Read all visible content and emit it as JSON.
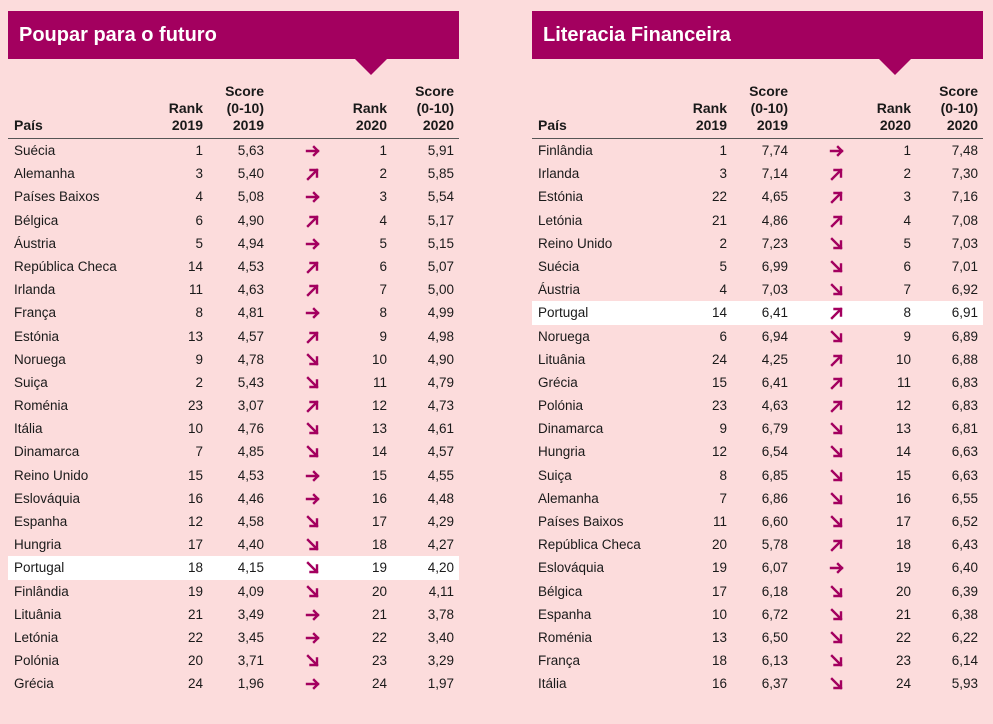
{
  "colors": {
    "accent": "#a3005f",
    "background": "#fcdcdc",
    "highlight": "#ffffff"
  },
  "columns": {
    "country": "País",
    "rank2019": [
      "Rank",
      "2019"
    ],
    "score2019": [
      "Score",
      "(0-10)",
      "2019"
    ],
    "rank2020": [
      "Rank",
      "2020"
    ],
    "score2020": [
      "Score",
      "(0-10)",
      "2020"
    ]
  },
  "tables": [
    {
      "title": "Poupar para o futuro",
      "rows": [
        {
          "c": "Suécia",
          "r19": "1",
          "s19": "5,63",
          "t": "right",
          "r20": "1",
          "s20": "5,91"
        },
        {
          "c": "Alemanha",
          "r19": "3",
          "s19": "5,40",
          "t": "up",
          "r20": "2",
          "s20": "5,85"
        },
        {
          "c": "Países Baixos",
          "r19": "4",
          "s19": "5,08",
          "t": "right",
          "r20": "3",
          "s20": "5,54"
        },
        {
          "c": "Bélgica",
          "r19": "6",
          "s19": "4,90",
          "t": "up",
          "r20": "4",
          "s20": "5,17"
        },
        {
          "c": "Áustria",
          "r19": "5",
          "s19": "4,94",
          "t": "right",
          "r20": "5",
          "s20": "5,15"
        },
        {
          "c": "República Checa",
          "r19": "14",
          "s19": "4,53",
          "t": "up",
          "r20": "6",
          "s20": "5,07"
        },
        {
          "c": "Irlanda",
          "r19": "11",
          "s19": "4,63",
          "t": "up",
          "r20": "7",
          "s20": "5,00"
        },
        {
          "c": "França",
          "r19": "8",
          "s19": "4,81",
          "t": "right",
          "r20": "8",
          "s20": "4,99"
        },
        {
          "c": "Estónia",
          "r19": "13",
          "s19": "4,57",
          "t": "up",
          "r20": "9",
          "s20": "4,98"
        },
        {
          "c": "Noruega",
          "r19": "9",
          "s19": "4,78",
          "t": "down",
          "r20": "10",
          "s20": "4,90"
        },
        {
          "c": "Suiça",
          "r19": "2",
          "s19": "5,43",
          "t": "down",
          "r20": "11",
          "s20": "4,79"
        },
        {
          "c": "Roménia",
          "r19": "23",
          "s19": "3,07",
          "t": "up",
          "r20": "12",
          "s20": "4,73"
        },
        {
          "c": "Itália",
          "r19": "10",
          "s19": "4,76",
          "t": "down",
          "r20": "13",
          "s20": "4,61"
        },
        {
          "c": "Dinamarca",
          "r19": "7",
          "s19": "4,85",
          "t": "down",
          "r20": "14",
          "s20": "4,57"
        },
        {
          "c": "Reino Unido",
          "r19": "15",
          "s19": "4,53",
          "t": "right",
          "r20": "15",
          "s20": "4,55"
        },
        {
          "c": "Eslováquia",
          "r19": "16",
          "s19": "4,46",
          "t": "right",
          "r20": "16",
          "s20": "4,48"
        },
        {
          "c": "Espanha",
          "r19": "12",
          "s19": "4,58",
          "t": "down",
          "r20": "17",
          "s20": "4,29"
        },
        {
          "c": "Hungria",
          "r19": "17",
          "s19": "4,40",
          "t": "down",
          "r20": "18",
          "s20": "4,27"
        },
        {
          "c": "Portugal",
          "r19": "18",
          "s19": "4,15",
          "t": "down",
          "r20": "19",
          "s20": "4,20",
          "hl": true
        },
        {
          "c": "Finlândia",
          "r19": "19",
          "s19": "4,09",
          "t": "down",
          "r20": "20",
          "s20": "4,11"
        },
        {
          "c": "Lituânia",
          "r19": "21",
          "s19": "3,49",
          "t": "right",
          "r20": "21",
          "s20": "3,78"
        },
        {
          "c": "Letónia",
          "r19": "22",
          "s19": "3,45",
          "t": "right",
          "r20": "22",
          "s20": "3,40"
        },
        {
          "c": "Polónia",
          "r19": "20",
          "s19": "3,71",
          "t": "down",
          "r20": "23",
          "s20": "3,29"
        },
        {
          "c": "Grécia",
          "r19": "24",
          "s19": "1,96",
          "t": "right",
          "r20": "24",
          "s20": "1,97"
        }
      ]
    },
    {
      "title": "Literacia Financeira",
      "rows": [
        {
          "c": "Finlândia",
          "r19": "1",
          "s19": "7,74",
          "t": "right",
          "r20": "1",
          "s20": "7,48"
        },
        {
          "c": "Irlanda",
          "r19": "3",
          "s19": "7,14",
          "t": "up",
          "r20": "2",
          "s20": "7,30"
        },
        {
          "c": "Estónia",
          "r19": "22",
          "s19": "4,65",
          "t": "up",
          "r20": "3",
          "s20": "7,16"
        },
        {
          "c": "Letónia",
          "r19": "21",
          "s19": "4,86",
          "t": "up",
          "r20": "4",
          "s20": "7,08"
        },
        {
          "c": "Reino Unido",
          "r19": "2",
          "s19": "7,23",
          "t": "down",
          "r20": "5",
          "s20": "7,03"
        },
        {
          "c": "Suécia",
          "r19": "5",
          "s19": "6,99",
          "t": "down",
          "r20": "6",
          "s20": "7,01"
        },
        {
          "c": "Áustria",
          "r19": "4",
          "s19": "7,03",
          "t": "down",
          "r20": "7",
          "s20": "6,92"
        },
        {
          "c": "Portugal",
          "r19": "14",
          "s19": "6,41",
          "t": "up",
          "r20": "8",
          "s20": "6,91",
          "hl": true
        },
        {
          "c": "Noruega",
          "r19": "6",
          "s19": "6,94",
          "t": "down",
          "r20": "9",
          "s20": "6,89"
        },
        {
          "c": "Lituânia",
          "r19": "24",
          "s19": "4,25",
          "t": "up",
          "r20": "10",
          "s20": "6,88"
        },
        {
          "c": "Grécia",
          "r19": "15",
          "s19": "6,41",
          "t": "up",
          "r20": "11",
          "s20": "6,83"
        },
        {
          "c": "Polónia",
          "r19": "23",
          "s19": "4,63",
          "t": "up",
          "r20": "12",
          "s20": "6,83"
        },
        {
          "c": "Dinamarca",
          "r19": "9",
          "s19": "6,79",
          "t": "down",
          "r20": "13",
          "s20": "6,81"
        },
        {
          "c": "Hungria",
          "r19": "12",
          "s19": "6,54",
          "t": "down",
          "r20": "14",
          "s20": "6,63"
        },
        {
          "c": "Suiça",
          "r19": "8",
          "s19": "6,85",
          "t": "down",
          "r20": "15",
          "s20": "6,63"
        },
        {
          "c": "Alemanha",
          "r19": "7",
          "s19": "6,86",
          "t": "down",
          "r20": "16",
          "s20": "6,55"
        },
        {
          "c": "Países Baixos",
          "r19": "11",
          "s19": "6,60",
          "t": "down",
          "r20": "17",
          "s20": "6,52"
        },
        {
          "c": "República Checa",
          "r19": "20",
          "s19": "5,78",
          "t": "up",
          "r20": "18",
          "s20": "6,43"
        },
        {
          "c": "Eslováquia",
          "r19": "19",
          "s19": "6,07",
          "t": "right",
          "r20": "19",
          "s20": "6,40"
        },
        {
          "c": "Bélgica",
          "r19": "17",
          "s19": "6,18",
          "t": "down",
          "r20": "20",
          "s20": "6,39"
        },
        {
          "c": "Espanha",
          "r19": "10",
          "s19": "6,72",
          "t": "down",
          "r20": "21",
          "s20": "6,38"
        },
        {
          "c": "Roménia",
          "r19": "13",
          "s19": "6,50",
          "t": "down",
          "r20": "22",
          "s20": "6,22"
        },
        {
          "c": "França",
          "r19": "18",
          "s19": "6,13",
          "t": "down",
          "r20": "23",
          "s20": "6,14"
        },
        {
          "c": "Itália",
          "r19": "16",
          "s19": "6,37",
          "t": "down",
          "r20": "24",
          "s20": "5,93"
        }
      ]
    }
  ]
}
